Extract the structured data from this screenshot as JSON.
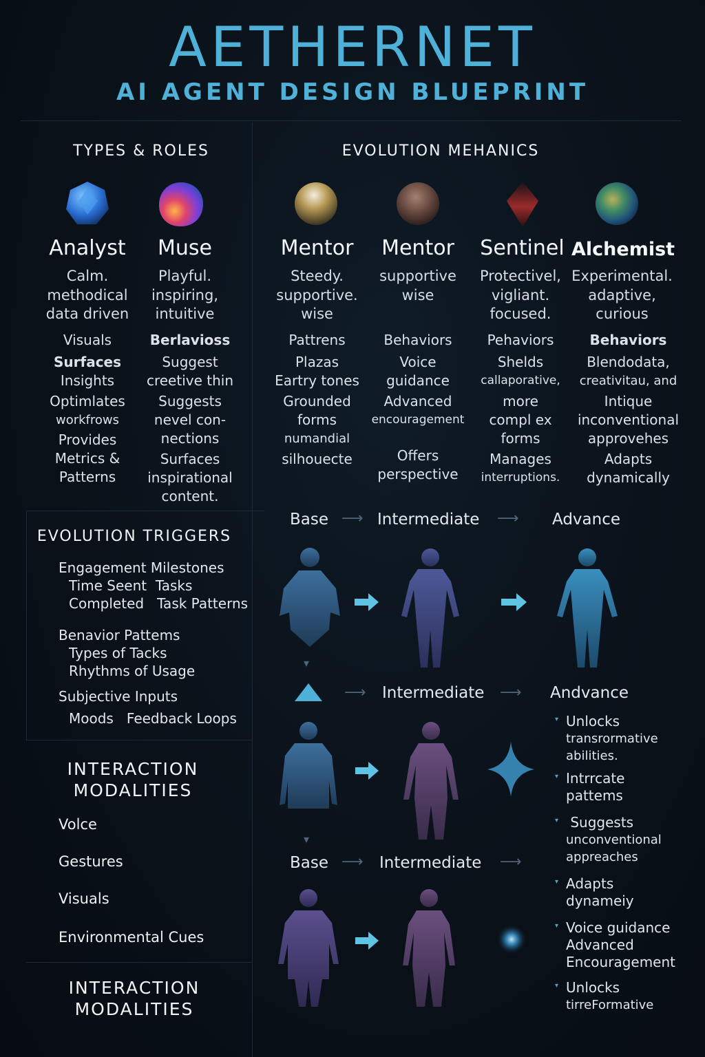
{
  "header": {
    "title": "AETHERNET",
    "subtitle": "AI AGENT DESIGN BLUEPRINT"
  },
  "types_roles": {
    "heading": "TYPES & ROLES",
    "agents": [
      {
        "name": "Analyst",
        "orb": "blue-crystal-orb",
        "traits": [
          "Calm.",
          "methodical",
          "data driven"
        ],
        "items": [
          "Visuals",
          "Surfaces",
          "Insights",
          "Optimlates",
          "workfrows",
          "Provides",
          "Metrics &",
          "Patterns"
        ]
      },
      {
        "name": "Muse",
        "orb": "rainbow-nebula-orb",
        "traits": [
          "Playful.",
          "inspiring,",
          "intuitive"
        ],
        "items": [
          "Berlavioss",
          "Suggest",
          "creetive thin",
          "Suggests",
          "nevel con-",
          "nections",
          "Surfaces",
          "inspirational",
          "content."
        ]
      }
    ]
  },
  "evolution_mechanics": {
    "heading": "EVOLUTION MEHANICS",
    "agents": [
      {
        "name": "Mentor",
        "orb": "golden-orb",
        "traits": [
          "Steedy.",
          "supportive.",
          "wise"
        ],
        "items": [
          "Pattrens",
          "Plazas",
          "Eartry tones",
          "Grounded",
          "forms",
          "numandial",
          "silhouecte"
        ]
      },
      {
        "name": "Mentor",
        "orb": "bronze-orb",
        "traits": [
          "supportive",
          "wise"
        ],
        "items": [
          "Behaviors",
          "Voice",
          "guidance",
          "Advanced",
          "encouragement",
          "Offers",
          "perspective"
        ]
      },
      {
        "name": "Sentinel",
        "orb": "red-crystal-orb",
        "traits": [
          "Protectivel,",
          "vigliant.",
          "focused."
        ],
        "items": [
          "Pehaviors",
          "Shelds",
          "callaporative,",
          "more",
          "compl ex",
          "forms",
          "Manages",
          "interruptions."
        ]
      },
      {
        "name": "Alchemist",
        "orb": "green-nebula-orb",
        "traits": [
          "Experimental.",
          "adaptive,",
          "curious"
        ],
        "items": [
          "Behaviors",
          "Blendodata,",
          "creativitau, and",
          "Intique",
          "inconventional",
          "approvehes",
          "Adapts",
          "dynamically"
        ]
      }
    ]
  },
  "evolution_triggers": {
    "heading": "EVOLUTION TRIGGERS",
    "groups": [
      {
        "title": "Engagement Milestones",
        "lines": [
          "Time Seent  Tasks",
          "Completed   Task Patterns"
        ]
      },
      {
        "title": "Benavior Pattems",
        "lines": [
          "Types of Tacks",
          "Rhythms of Usage"
        ]
      },
      {
        "title": "Subjective Inputs",
        "lines": [
          "Moods   Feedback Loops"
        ]
      }
    ]
  },
  "interaction_modalities": {
    "heading_line1": "INTERACTION",
    "heading_line2": "MODALITIES",
    "items": [
      "Volce",
      "Gestures",
      "Visuals",
      "Environmental Cues"
    ],
    "footer_line1": "INTERACTION",
    "footer_line2": "MODALITIES"
  },
  "stages": {
    "row1": [
      "Base",
      "Intermediate",
      "Advance"
    ],
    "row2": [
      "Intermediate",
      "Andvance"
    ],
    "row3": [
      "Base",
      "Intermediate"
    ]
  },
  "advanced_bullets": [
    [
      "Unlocks",
      "transrormative",
      "abilities."
    ],
    [
      "Intrrcate",
      "pattems"
    ],
    [
      " Suggests",
      "unconventional",
      "appreaches"
    ],
    [
      "Adapts",
      "dynameiy"
    ],
    [
      "Voice guidance",
      "Advanced",
      "Encouragement"
    ],
    [
      "Unlocks",
      "tirreFormative"
    ]
  ],
  "colors": {
    "accent": "#4fb0d8",
    "background": "#0a1119",
    "arrow": "#5fc3e4"
  }
}
